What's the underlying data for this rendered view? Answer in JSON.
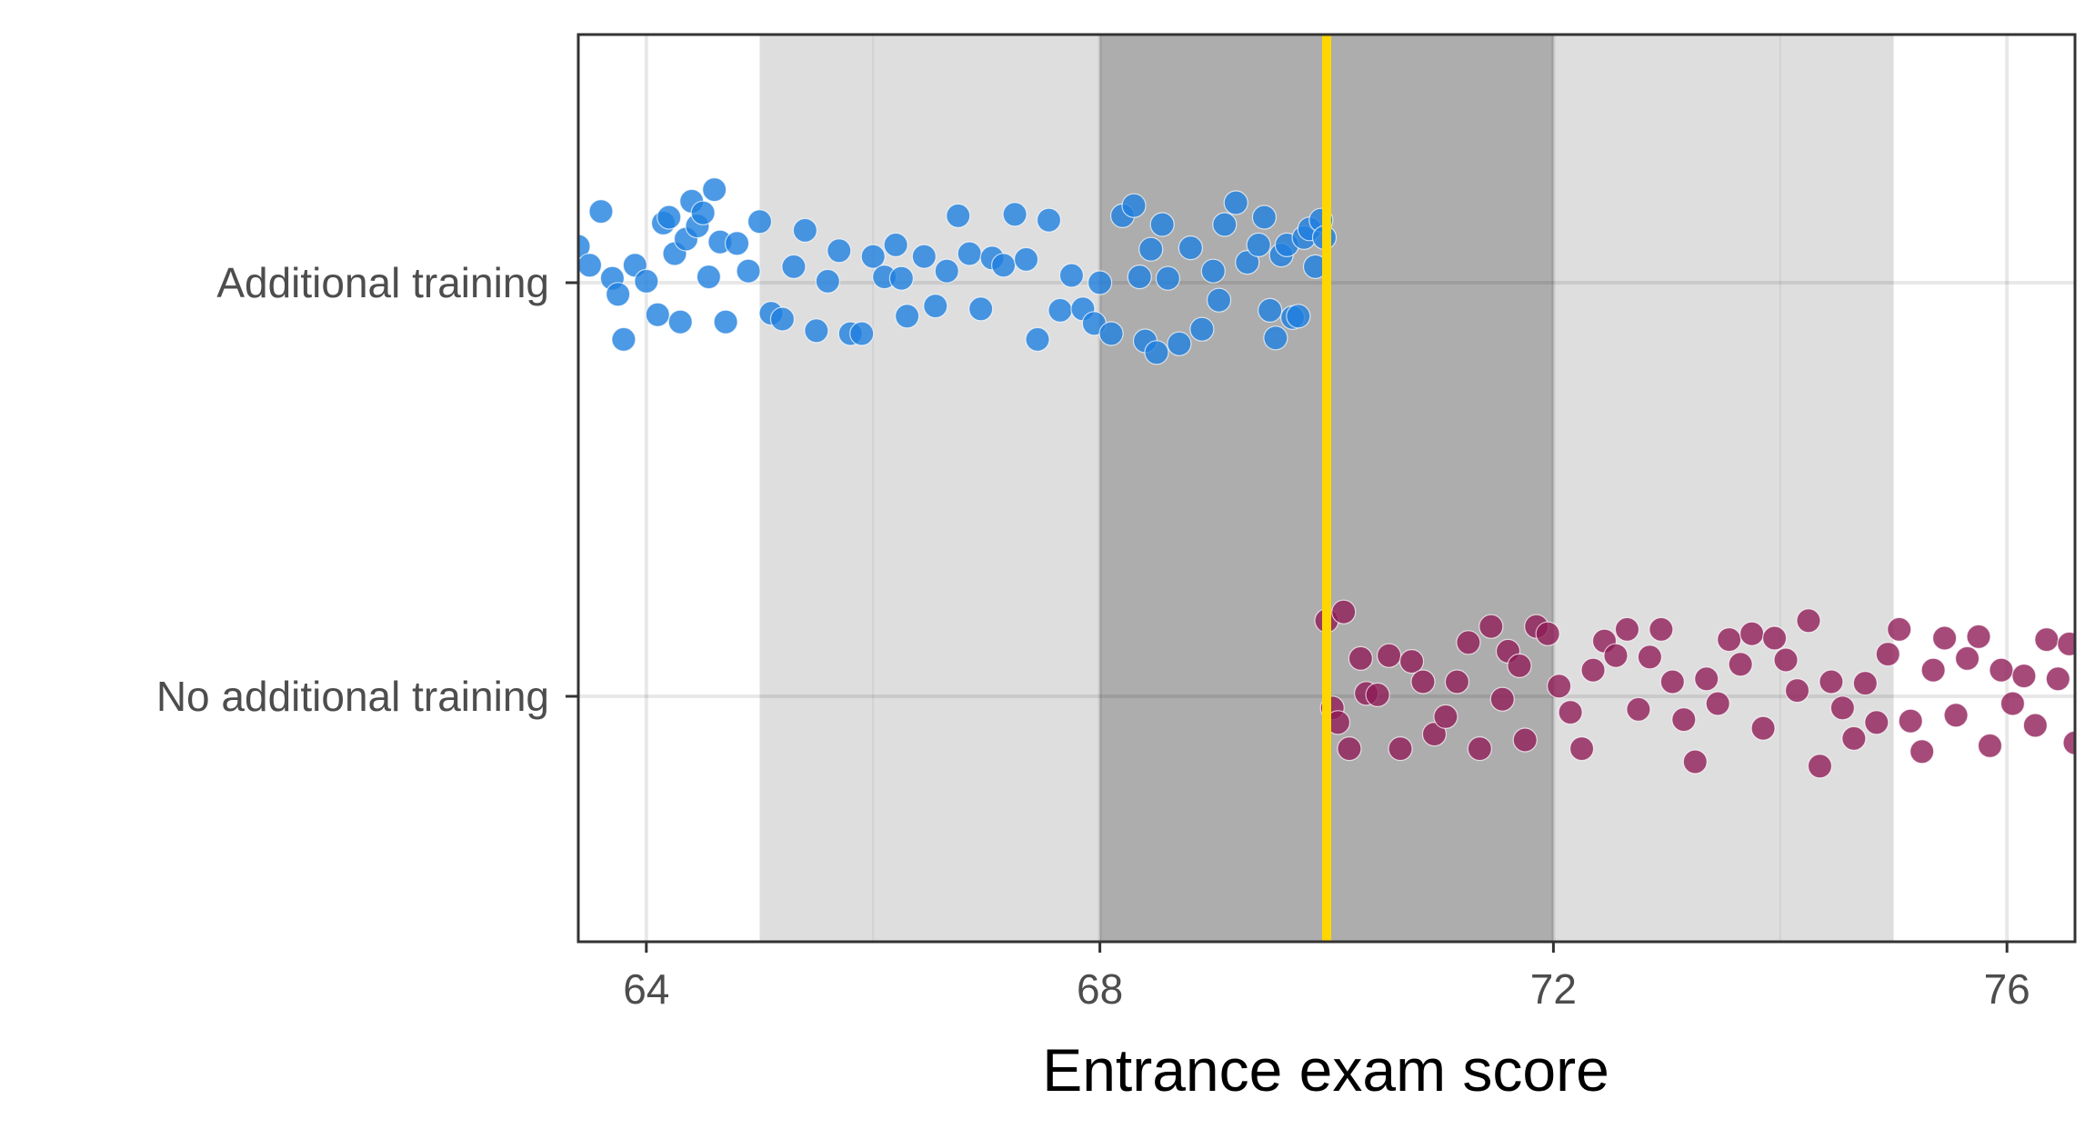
{
  "chart_data": {
    "type": "scatter",
    "title": "",
    "xlabel": "Entrance exam score",
    "ylabel": "",
    "xlim": [
      63.4,
      76.6
    ],
    "x_ticks": [
      "64",
      "68",
      "72",
      "76"
    ],
    "categories": [
      "Additional training",
      "No additional training"
    ],
    "grid": true,
    "legend": "none",
    "cutoff": 70,
    "cutoff_color": "#FFD700",
    "bands": [
      {
        "from": 65,
        "to": 75,
        "color": "#dedede"
      },
      {
        "from": 68,
        "to": 72,
        "color": "#adadad"
      }
    ],
    "series": [
      {
        "category": "Additional training",
        "color": "#1f7fde",
        "points": [
          [
            63.4,
            0.25
          ],
          [
            63.5,
            0.12
          ],
          [
            63.6,
            0.49
          ],
          [
            63.7,
            0.03
          ],
          [
            63.75,
            -0.08
          ],
          [
            63.8,
            -0.39
          ],
          [
            63.9,
            0.12
          ],
          [
            64.0,
            0.01
          ],
          [
            64.1,
            -0.22
          ],
          [
            64.15,
            0.41
          ],
          [
            64.2,
            0.45
          ],
          [
            64.25,
            0.2
          ],
          [
            64.3,
            -0.27
          ],
          [
            64.35,
            0.3
          ],
          [
            64.4,
            0.56
          ],
          [
            64.45,
            0.39
          ],
          [
            64.5,
            0.48
          ],
          [
            64.55,
            0.04
          ],
          [
            64.6,
            0.64
          ],
          [
            64.65,
            0.28
          ],
          [
            64.7,
            -0.27
          ],
          [
            64.8,
            0.27
          ],
          [
            64.9,
            0.08
          ],
          [
            65.0,
            0.42
          ],
          [
            65.1,
            -0.21
          ],
          [
            65.2,
            -0.25
          ],
          [
            65.3,
            0.11
          ],
          [
            65.4,
            0.36
          ],
          [
            65.5,
            -0.33
          ],
          [
            65.6,
            0.01
          ],
          [
            65.7,
            0.22
          ],
          [
            65.8,
            -0.35
          ],
          [
            65.9,
            -0.35
          ],
          [
            66.0,
            0.18
          ],
          [
            66.1,
            0.04
          ],
          [
            66.2,
            0.26
          ],
          [
            66.25,
            0.03
          ],
          [
            66.3,
            -0.23
          ],
          [
            66.45,
            0.18
          ],
          [
            66.55,
            -0.16
          ],
          [
            66.65,
            0.08
          ],
          [
            66.75,
            0.46
          ],
          [
            66.85,
            0.2
          ],
          [
            66.95,
            -0.18
          ],
          [
            67.05,
            0.17
          ],
          [
            67.15,
            0.12
          ],
          [
            67.25,
            0.47
          ],
          [
            67.35,
            0.16
          ],
          [
            67.45,
            -0.39
          ],
          [
            67.55,
            0.43
          ],
          [
            67.65,
            -0.19
          ],
          [
            67.75,
            0.05
          ],
          [
            67.85,
            -0.18
          ],
          [
            67.95,
            -0.28
          ],
          [
            68.0,
            0.0
          ],
          [
            68.1,
            -0.35
          ],
          [
            68.2,
            0.46
          ],
          [
            68.3,
            0.53
          ],
          [
            68.35,
            0.04
          ],
          [
            68.4,
            -0.4
          ],
          [
            68.45,
            0.23
          ],
          [
            68.5,
            -0.48
          ],
          [
            68.55,
            0.4
          ],
          [
            68.6,
            0.03
          ],
          [
            68.7,
            -0.42
          ],
          [
            68.8,
            0.24
          ],
          [
            68.9,
            -0.32
          ],
          [
            69.0,
            0.08
          ],
          [
            69.05,
            -0.12
          ],
          [
            69.1,
            0.4
          ],
          [
            69.2,
            0.55
          ],
          [
            69.3,
            0.14
          ],
          [
            69.4,
            0.26
          ],
          [
            69.45,
            0.45
          ],
          [
            69.5,
            -0.19
          ],
          [
            69.55,
            -0.38
          ],
          [
            69.6,
            0.19
          ],
          [
            69.65,
            0.26
          ],
          [
            69.7,
            -0.24
          ],
          [
            69.75,
            -0.23
          ],
          [
            69.8,
            0.31
          ],
          [
            69.85,
            0.37
          ],
          [
            69.9,
            0.11
          ],
          [
            69.95,
            0.43
          ],
          [
            69.98,
            0.31
          ]
        ]
      },
      {
        "category": "No additional training",
        "color": "#8f1d57",
        "points": [
          [
            70.0,
            0.52
          ],
          [
            70.05,
            -0.08
          ],
          [
            70.1,
            -0.18
          ],
          [
            70.15,
            0.58
          ],
          [
            70.2,
            -0.36
          ],
          [
            70.3,
            0.26
          ],
          [
            70.35,
            0.02
          ],
          [
            70.45,
            0.01
          ],
          [
            70.55,
            0.28
          ],
          [
            70.65,
            -0.36
          ],
          [
            70.75,
            0.24
          ],
          [
            70.85,
            0.1
          ],
          [
            70.95,
            -0.26
          ],
          [
            71.05,
            -0.14
          ],
          [
            71.15,
            0.1
          ],
          [
            71.25,
            0.37
          ],
          [
            71.35,
            -0.36
          ],
          [
            71.45,
            0.48
          ],
          [
            71.55,
            -0.02
          ],
          [
            71.6,
            0.31
          ],
          [
            71.7,
            0.21
          ],
          [
            71.75,
            -0.3
          ],
          [
            71.85,
            0.48
          ],
          [
            71.95,
            0.43
          ],
          [
            72.05,
            0.07
          ],
          [
            72.15,
            -0.11
          ],
          [
            72.25,
            -0.36
          ],
          [
            72.35,
            0.18
          ],
          [
            72.45,
            0.38
          ],
          [
            72.55,
            0.28
          ],
          [
            72.65,
            0.46
          ],
          [
            72.75,
            -0.09
          ],
          [
            72.85,
            0.27
          ],
          [
            72.95,
            0.46
          ],
          [
            73.05,
            0.1
          ],
          [
            73.15,
            -0.16
          ],
          [
            73.25,
            -0.45
          ],
          [
            73.35,
            0.12
          ],
          [
            73.45,
            -0.05
          ],
          [
            73.55,
            0.39
          ],
          [
            73.65,
            0.22
          ],
          [
            73.75,
            0.43
          ],
          [
            73.85,
            -0.22
          ],
          [
            73.95,
            0.4
          ],
          [
            74.05,
            0.25
          ],
          [
            74.15,
            0.04
          ],
          [
            74.25,
            0.52
          ],
          [
            74.35,
            -0.48
          ],
          [
            74.45,
            0.1
          ],
          [
            74.55,
            -0.08
          ],
          [
            74.65,
            -0.29
          ],
          [
            74.75,
            0.09
          ],
          [
            74.85,
            -0.18
          ],
          [
            74.95,
            0.29
          ],
          [
            75.05,
            0.46
          ],
          [
            75.15,
            -0.17
          ],
          [
            75.25,
            -0.38
          ],
          [
            75.35,
            0.18
          ],
          [
            75.45,
            0.4
          ],
          [
            75.55,
            -0.13
          ],
          [
            75.65,
            0.26
          ],
          [
            75.75,
            0.41
          ],
          [
            75.85,
            -0.34
          ],
          [
            75.95,
            0.18
          ],
          [
            76.05,
            -0.05
          ],
          [
            76.15,
            0.14
          ],
          [
            76.25,
            -0.2
          ],
          [
            76.35,
            0.39
          ],
          [
            76.45,
            0.12
          ],
          [
            76.55,
            0.36
          ],
          [
            76.6,
            -0.32
          ]
        ]
      }
    ]
  }
}
